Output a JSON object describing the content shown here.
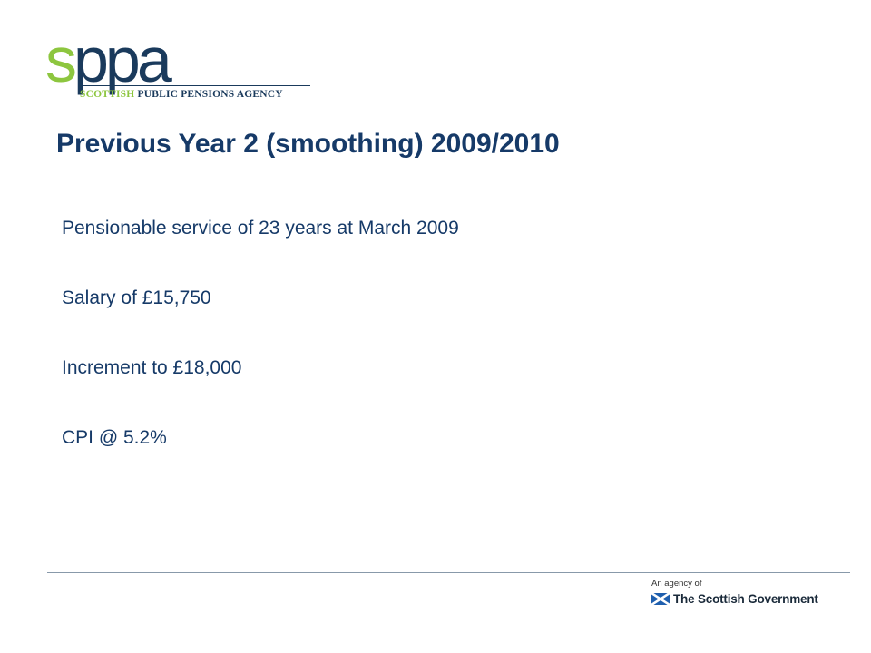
{
  "logo": {
    "letter_s": "s",
    "letters_rest": "ppa",
    "tagline_green": "SCOTTISH",
    "tagline_navy": "PUBLIC PENSIONS AGENCY"
  },
  "slide": {
    "title": "Previous Year 2 (smoothing) 2009/2010",
    "items": [
      "Pensionable service of 23 years at March 2009",
      "Salary of £15,750",
      "Increment to £18,000",
      "CPI @ 5.2%"
    ]
  },
  "footer": {
    "agency_of": "An agency of",
    "government": "The Scottish Government"
  },
  "colors": {
    "brand_green": "#8dc63f",
    "brand_navy": "#1a3a5c",
    "title_blue": "#163a68",
    "saltire_blue": "#1f5fae"
  },
  "icons": {
    "footer_flag": "saltire-flag-icon"
  }
}
